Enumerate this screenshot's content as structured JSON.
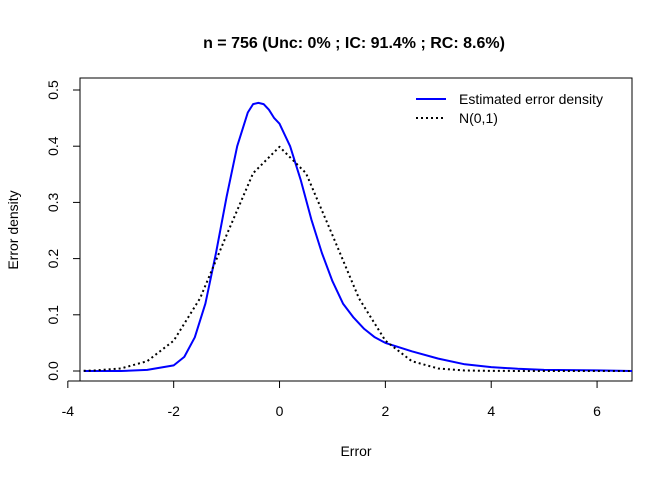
{
  "chart_data": {
    "type": "line",
    "title": "n = 756 (Unc: 0% ; IC: 91.4% ; RC: 8.6%)",
    "xlabel": "Error",
    "ylabel": "Error density",
    "xlim": [
      -3.77,
      6.66
    ],
    "ylim": [
      0,
      0.5
    ],
    "x_ticks": [
      "-4",
      "-2",
      "0",
      "2",
      "4",
      "6"
    ],
    "y_ticks": [
      "0.0",
      "0.1",
      "0.2",
      "0.3",
      "0.4",
      "0.5"
    ],
    "legend_position": "top-right",
    "grid": false,
    "series": [
      {
        "name": "Estimated error density",
        "color": "#0000ff",
        "style": "solid",
        "x": [
          -3.7,
          -3.0,
          -2.5,
          -2.0,
          -1.8,
          -1.6,
          -1.4,
          -1.2,
          -1.0,
          -0.8,
          -0.6,
          -0.5,
          -0.4,
          -0.3,
          -0.2,
          -0.1,
          0.0,
          0.2,
          0.4,
          0.6,
          0.8,
          1.0,
          1.2,
          1.4,
          1.6,
          1.8,
          2.0,
          2.5,
          3.0,
          3.5,
          4.0,
          4.5,
          5.0,
          6.0,
          6.66
        ],
        "y": [
          0.0,
          0.0,
          0.002,
          0.01,
          0.025,
          0.06,
          0.12,
          0.21,
          0.31,
          0.4,
          0.46,
          0.475,
          0.477,
          0.475,
          0.465,
          0.45,
          0.44,
          0.4,
          0.34,
          0.27,
          0.21,
          0.16,
          0.12,
          0.095,
          0.075,
          0.06,
          0.05,
          0.035,
          0.022,
          0.012,
          0.007,
          0.004,
          0.002,
          0.001,
          0.0
        ]
      },
      {
        "name": "N(0,1)",
        "color": "#000000",
        "style": "dotted",
        "x": [
          -3.7,
          -3.5,
          -3.0,
          -2.5,
          -2.0,
          -1.5,
          -1.0,
          -0.5,
          0.0,
          0.5,
          1.0,
          1.5,
          2.0,
          2.5,
          3.0,
          3.5,
          4.0,
          5.0,
          6.0,
          6.66
        ],
        "y": [
          0.0004,
          0.0009,
          0.0044,
          0.0175,
          0.054,
          0.1295,
          0.242,
          0.352,
          0.399,
          0.352,
          0.242,
          0.1295,
          0.054,
          0.0175,
          0.0044,
          0.0009,
          0.0001,
          0.0,
          0.0,
          0.0
        ]
      }
    ]
  }
}
